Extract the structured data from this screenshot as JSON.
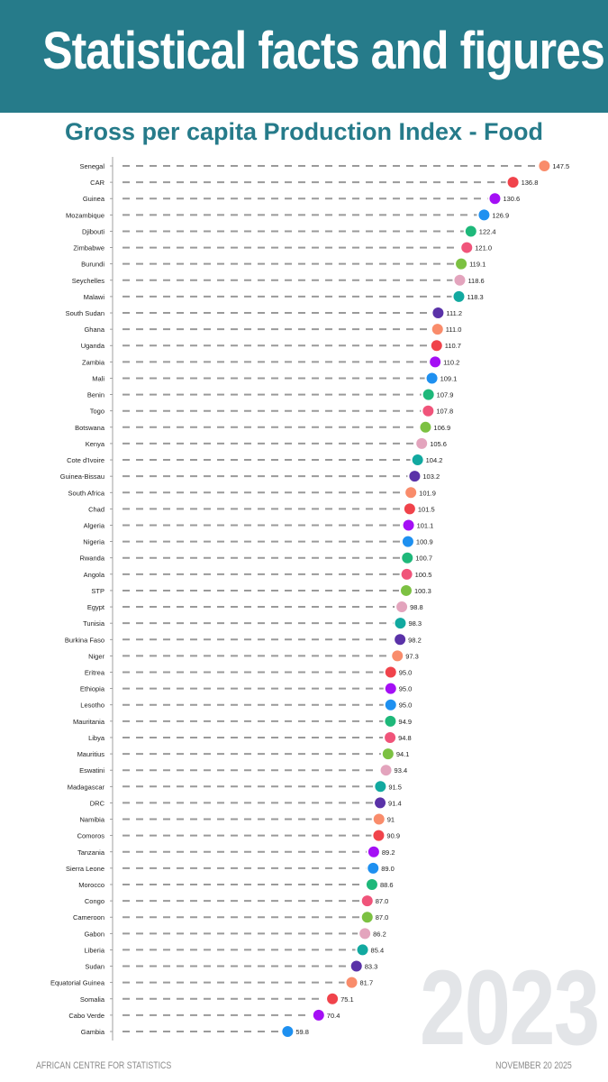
{
  "header": {
    "title": "Statistical facts and figures"
  },
  "footer": {
    "left": "AFRICAN CENTRE FOR STATISTICS",
    "right": "NOVEMBER 20 2025"
  },
  "year_label": "2023",
  "chart_data": {
    "type": "lollipop",
    "title": "Gross per capita Production Index - Food",
    "xlabel": "",
    "ylabel": "",
    "xlim": [
      0,
      150
    ],
    "grid": false,
    "color_cycle": [
      "#f98c6b",
      "#f0434b",
      "#a40ff5",
      "#1e90f0",
      "#1eb87a",
      "#f0547a",
      "#7cc142",
      "#e3a4bd",
      "#12a9a0",
      "#5a32a8"
    ],
    "categories": [
      "Senegal",
      "CAR",
      "Guinea",
      "Mozambique",
      "Djibouti",
      "Zimbabwe",
      "Burundi",
      "Seychelles",
      "Malawi",
      "South Sudan",
      "Ghana",
      "Uganda",
      "Zambia",
      "Mali",
      "Benin",
      "Togo",
      "Botswana",
      "Kenya",
      "Cote d'Ivoire",
      "Guinea-Bissau",
      "South Africa",
      "Chad",
      "Algeria",
      "Nigeria",
      "Rwanda",
      "Angola",
      "STP",
      "Egypt",
      "Tunisia",
      "Burkina Faso",
      "Niger",
      "Eritrea",
      "Ethiopia",
      "Lesotho",
      "Mauritania",
      "Libya",
      "Mauritius",
      "Eswatini",
      "Madagascar",
      "DRC",
      "Namibia",
      "Comoros",
      "Tanzania",
      "Sierra Leone",
      "Morocco",
      "Congo",
      "Cameroon",
      "Gabon",
      "Liberia",
      "Sudan",
      "Equatorial Guinea",
      "Somalia",
      "Cabo Verde",
      "Gambia"
    ],
    "values": [
      147.5,
      136.8,
      130.6,
      126.9,
      122.4,
      121.0,
      119.1,
      118.6,
      118.3,
      111.2,
      111.0,
      110.7,
      110.2,
      109.1,
      107.9,
      107.8,
      106.9,
      105.6,
      104.2,
      103.2,
      101.9,
      101.5,
      101.1,
      100.9,
      100.7,
      100.5,
      100.3,
      98.8,
      98.3,
      98.2,
      97.3,
      95.0,
      95.0,
      95.0,
      94.9,
      94.8,
      94.1,
      93.4,
      91.5,
      91.4,
      91,
      90.9,
      89.2,
      89.0,
      88.6,
      87.0,
      87.0,
      86.2,
      85.4,
      83.3,
      81.7,
      75.1,
      70.4,
      59.8
    ],
    "value_labels": [
      "147.5",
      "136.8",
      "130.6",
      "126.9",
      "122.4",
      "121.0",
      "119.1",
      "118.6",
      "118.3",
      "111.2",
      "111.0",
      "110.7",
      "110.2",
      "109.1",
      "107.9",
      "107.8",
      "106.9",
      "105.6",
      "104.2",
      "103.2",
      "101.9",
      "101.5",
      "101.1",
      "100.9",
      "100.7",
      "100.5",
      "100.3",
      "98.8",
      "98.3",
      "98.2",
      "97.3",
      "95.0",
      "95.0",
      "95.0",
      "94.9",
      "94.8",
      "94.1",
      "93.4",
      "91.5",
      "91.4",
      "91",
      "90.9",
      "89.2",
      "89.0",
      "88.6",
      "87.0",
      "87.0",
      "86.2",
      "85.4",
      "83.3",
      "81.7",
      "75.1",
      "70.4",
      "59.8"
    ]
  }
}
